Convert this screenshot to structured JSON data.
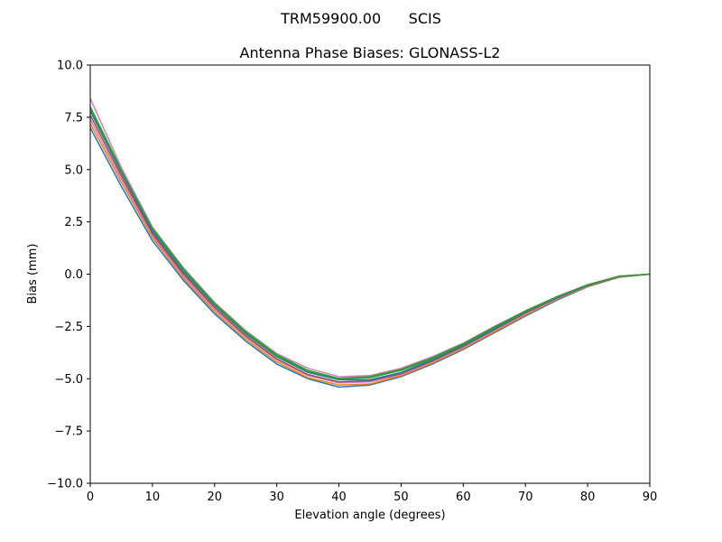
{
  "chart_data": {
    "type": "line",
    "suptitle": "TRM59900.00      SCIS",
    "title": "Antenna Phase Biases: GLONASS-L2",
    "xlabel": "Elevation angle (degrees)",
    "ylabel": "Bias (mm)",
    "xlim": [
      0,
      90
    ],
    "ylim": [
      -10,
      10
    ],
    "xticks": [
      0,
      10,
      20,
      30,
      40,
      50,
      60,
      70,
      80,
      90
    ],
    "yticks": [
      -10,
      -7.5,
      -5,
      -2.5,
      0,
      2.5,
      5,
      7.5,
      10
    ],
    "x": [
      0,
      5,
      10,
      15,
      20,
      25,
      30,
      35,
      40,
      45,
      50,
      55,
      60,
      65,
      70,
      75,
      80,
      85,
      90
    ],
    "series": [
      {
        "color": "#1f77b4",
        "values": [
          7.0,
          4.2,
          1.6,
          -0.3,
          -1.9,
          -3.2,
          -4.3,
          -5.0,
          -5.4,
          -5.3,
          -4.9,
          -4.3,
          -3.6,
          -2.8,
          -2.0,
          -1.25,
          -0.6,
          -0.15,
          0.0
        ]
      },
      {
        "color": "#ff7f0e",
        "values": [
          7.2,
          4.4,
          1.75,
          -0.2,
          -1.8,
          -3.1,
          -4.2,
          -4.95,
          -5.3,
          -5.25,
          -4.85,
          -4.25,
          -3.55,
          -2.75,
          -1.95,
          -1.2,
          -0.58,
          -0.14,
          0.0
        ]
      },
      {
        "color": "#e377c2",
        "values": [
          7.4,
          4.55,
          1.85,
          -0.1,
          -1.7,
          -3.0,
          -4.1,
          -4.85,
          -5.2,
          -5.15,
          -4.8,
          -4.2,
          -3.5,
          -2.7,
          -1.9,
          -1.18,
          -0.56,
          -0.13,
          0.0
        ]
      },
      {
        "color": "#8c564b",
        "values": [
          7.6,
          4.7,
          1.95,
          0.0,
          -1.6,
          -2.95,
          -4.05,
          -4.8,
          -5.15,
          -5.1,
          -4.75,
          -4.15,
          -3.45,
          -2.65,
          -1.85,
          -1.15,
          -0.55,
          -0.12,
          0.0
        ]
      },
      {
        "color": "#1f77b4",
        "values": [
          7.8,
          4.85,
          2.05,
          0.1,
          -1.5,
          -2.85,
          -3.95,
          -4.7,
          -5.05,
          -5.05,
          -4.7,
          -4.1,
          -3.4,
          -2.6,
          -1.8,
          -1.12,
          -0.53,
          -0.11,
          0.0
        ]
      },
      {
        "color": "#2ca02c",
        "values": [
          8.0,
          5.0,
          2.15,
          0.2,
          -1.45,
          -2.8,
          -3.9,
          -4.65,
          -5.0,
          -4.95,
          -4.6,
          -4.05,
          -3.35,
          -2.55,
          -1.78,
          -1.1,
          -0.52,
          -0.1,
          0.0
        ]
      },
      {
        "color": "#e377c2",
        "values": [
          8.4,
          5.1,
          2.25,
          0.3,
          -1.35,
          -2.7,
          -3.8,
          -4.5,
          -4.9,
          -4.85,
          -4.5,
          -3.95,
          -3.3,
          -2.5,
          -1.75,
          -1.08,
          -0.5,
          -0.1,
          0.0
        ]
      },
      {
        "color": "#2ca02c",
        "values": [
          7.9,
          4.95,
          2.2,
          0.25,
          -1.4,
          -2.75,
          -3.85,
          -4.6,
          -4.98,
          -4.9,
          -4.55,
          -4.0,
          -3.32,
          -2.52,
          -1.76,
          -1.09,
          -0.51,
          -0.1,
          0.0
        ]
      }
    ]
  }
}
